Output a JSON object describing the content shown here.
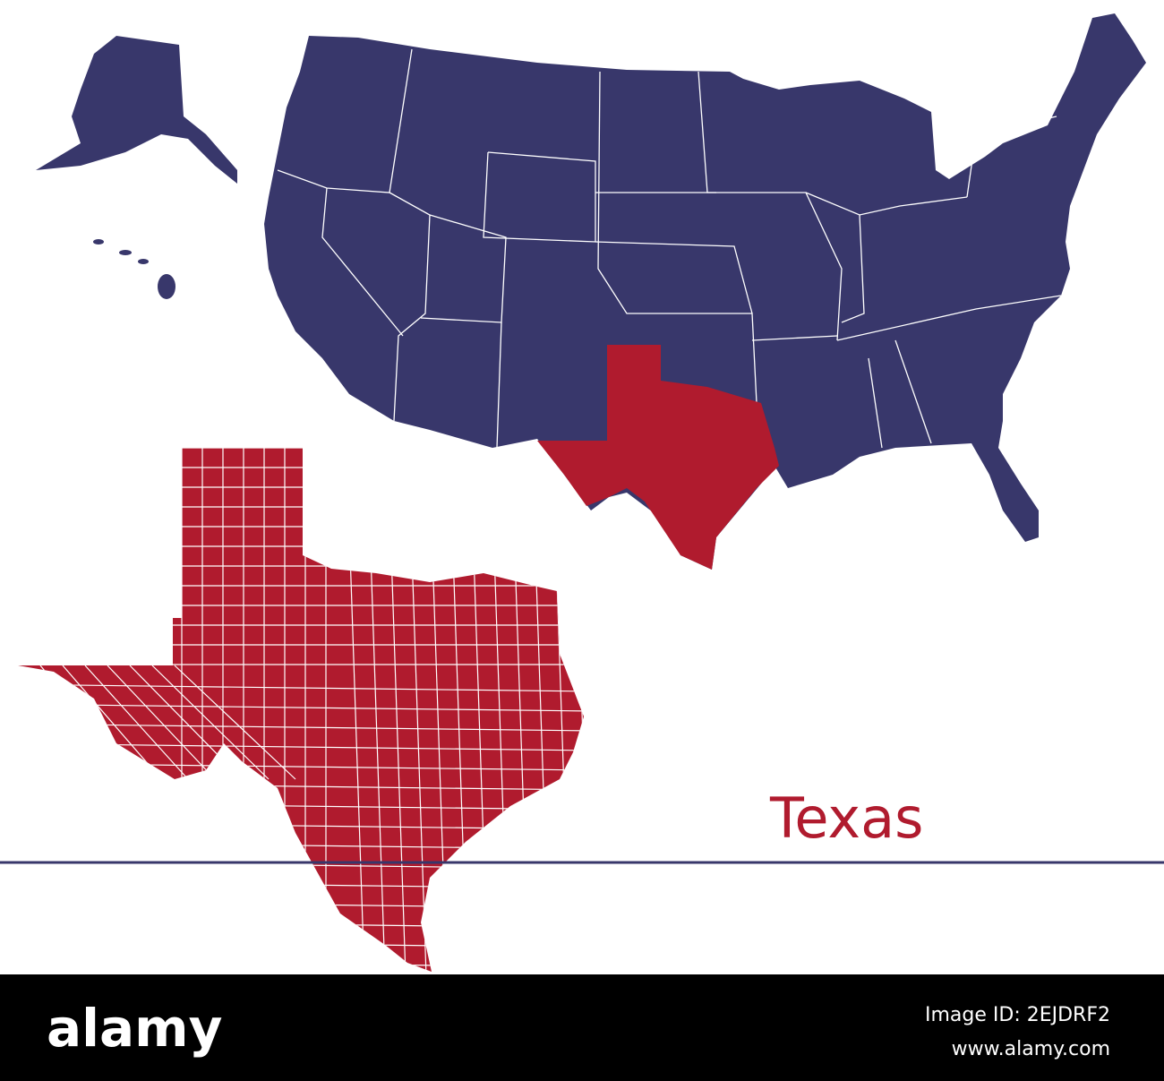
{
  "map": {
    "label": "Texas"
  },
  "footer": {
    "logo": "alamy",
    "image_id": "Image ID: 2EJDRF2",
    "url": "www.alamy.com"
  }
}
